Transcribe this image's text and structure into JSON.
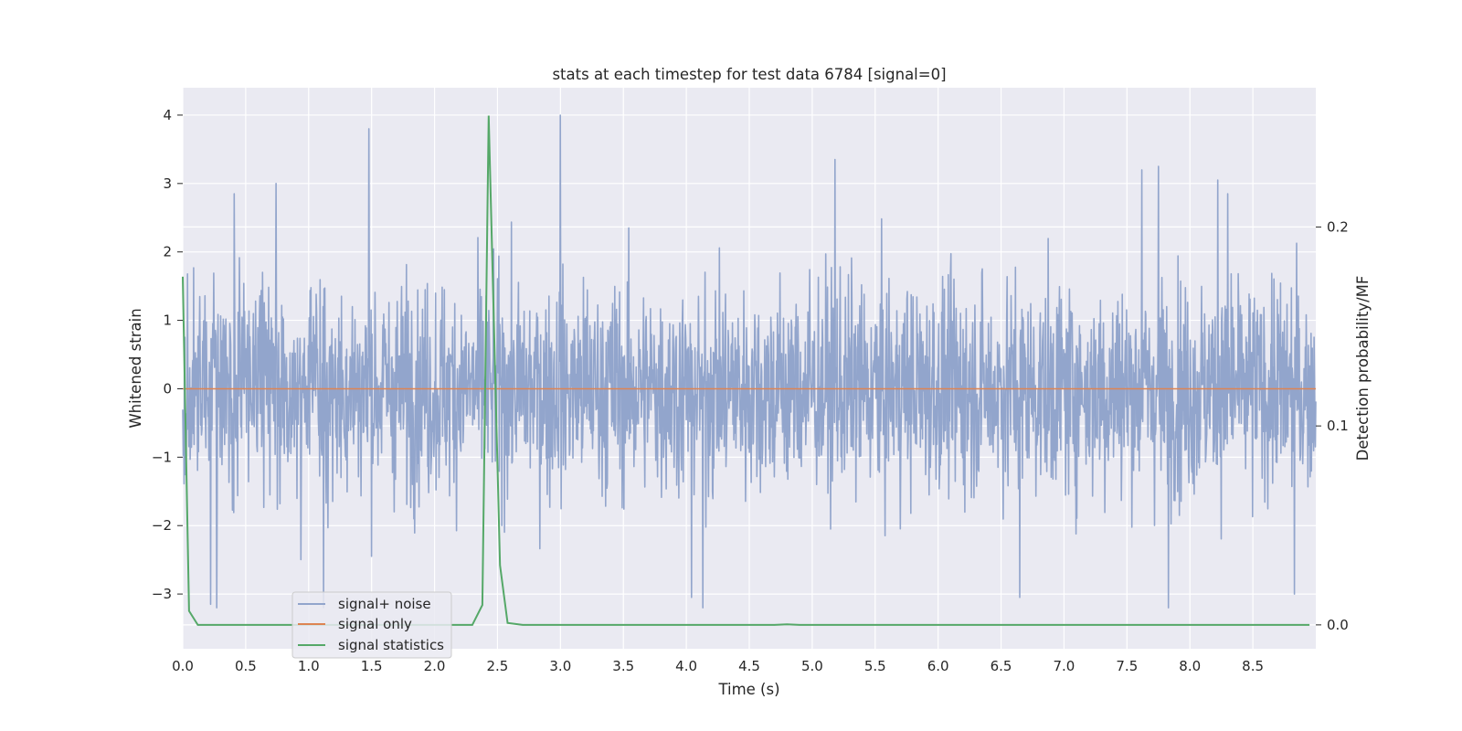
{
  "chart_data": {
    "type": "line",
    "title": "stats at each timestep for test data 6784 [signal=0]",
    "xlabel": "Time (s)",
    "ylabel": "Whitened strain",
    "ylabel_right": "Detection probability/MF",
    "xlim": [
      0.0,
      9.0
    ],
    "ylim": [
      -3.8,
      4.4
    ],
    "ylim_right": [
      -0.012,
      0.27
    ],
    "x_ticks": [
      0.0,
      0.5,
      1.0,
      1.5,
      2.0,
      2.5,
      3.0,
      3.5,
      4.0,
      4.5,
      5.0,
      5.5,
      6.0,
      6.5,
      7.0,
      7.5,
      8.0,
      8.5
    ],
    "x_tick_labels": [
      "0.0",
      "0.5",
      "1.0",
      "1.5",
      "2.0",
      "2.5",
      "3.0",
      "3.5",
      "4.0",
      "4.5",
      "5.0",
      "5.5",
      "6.0",
      "6.5",
      "7.0",
      "7.5",
      "8.0",
      "8.5"
    ],
    "y_ticks": [
      -3,
      -2,
      -1,
      0,
      1,
      2,
      3,
      4
    ],
    "y_tick_labels": [
      "−3",
      "−2",
      "−1",
      "0",
      "1",
      "2",
      "3",
      "4"
    ],
    "y_ticks_right": [
      0.0,
      0.1,
      0.2
    ],
    "y_tick_labels_right": [
      "0.0",
      "0.1",
      "0.2"
    ],
    "grid": true,
    "legend_position": "bottom-left",
    "series": [
      {
        "name": "signal+ noise",
        "axis": "left",
        "color": "#92a5cc",
        "description": "noise trace, roughly within -2.5 to 2.5",
        "notable_peaks": [
          {
            "x": 0.41,
            "y": 2.85
          },
          {
            "x": 0.74,
            "y": 3.0
          },
          {
            "x": 1.48,
            "y": 3.8
          },
          {
            "x": 3.0,
            "y": 4.0
          },
          {
            "x": 5.18,
            "y": 3.35
          },
          {
            "x": 7.62,
            "y": 3.2
          },
          {
            "x": 7.75,
            "y": 3.25
          },
          {
            "x": 8.22,
            "y": 3.05
          },
          {
            "x": 8.3,
            "y": 2.85
          },
          {
            "x": 0.22,
            "y": -3.15
          },
          {
            "x": 0.27,
            "y": -3.2
          },
          {
            "x": 1.12,
            "y": -3.2
          },
          {
            "x": 4.04,
            "y": -3.05
          },
          {
            "x": 4.13,
            "y": -3.2
          },
          {
            "x": 6.65,
            "y": -3.05
          },
          {
            "x": 7.83,
            "y": -3.2
          },
          {
            "x": 8.83,
            "y": -3.0
          }
        ]
      },
      {
        "name": "signal only",
        "axis": "left",
        "color": "#dd8452",
        "x": [
          0.0,
          9.0
        ],
        "y": [
          0.0,
          0.0
        ]
      },
      {
        "name": "signal statistics",
        "axis": "right",
        "color": "#55a868",
        "x": [
          0.0,
          0.05,
          0.12,
          0.2,
          0.5,
          1.0,
          1.5,
          2.0,
          2.3,
          2.38,
          2.43,
          2.48,
          2.52,
          2.58,
          2.7,
          3.0,
          4.0,
          4.7,
          4.8,
          4.9,
          5.0,
          6.0,
          7.0,
          8.0,
          8.95
        ],
        "y": [
          0.175,
          0.007,
          0.0,
          0.0,
          0.0,
          0.0,
          0.0,
          0.0,
          0.0,
          0.01,
          0.256,
          0.13,
          0.03,
          0.001,
          0.0,
          0.0,
          0.0,
          0.0,
          0.0003,
          0.0,
          0.0,
          0.0,
          0.0,
          0.0,
          0.0
        ]
      }
    ]
  }
}
